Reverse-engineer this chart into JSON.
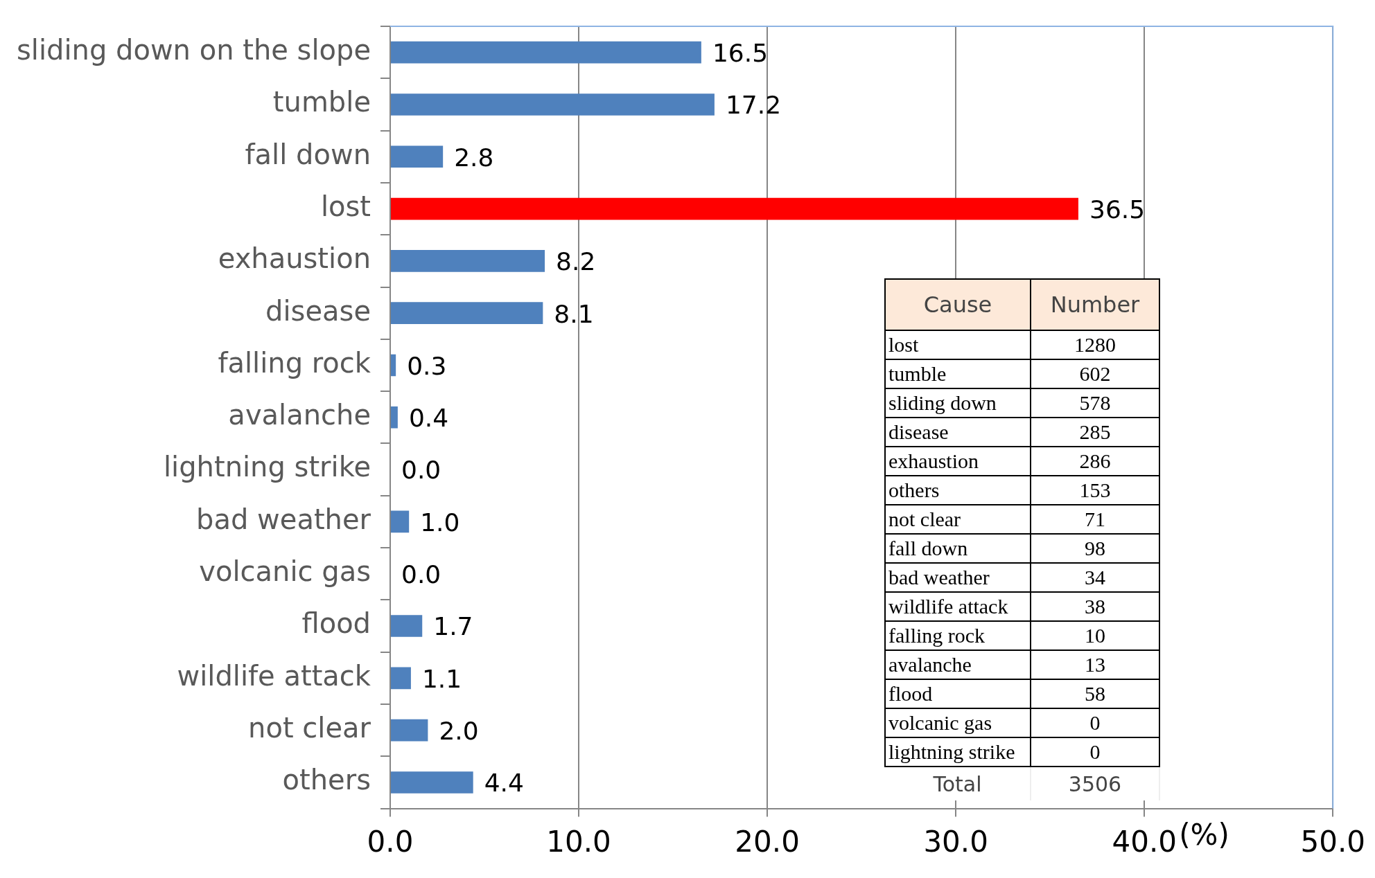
{
  "chart_data": {
    "type": "bar",
    "orientation": "horizontal",
    "categories": [
      "sliding down on the slope",
      "tumble",
      "fall down",
      "lost",
      "exhaustion",
      "disease",
      "falling rock",
      "avalanche",
      "lightning strike",
      "bad weather",
      "volcanic gas",
      "flood",
      "wildlife attack",
      "not clear",
      "others"
    ],
    "values": [
      16.5,
      17.2,
      2.8,
      36.5,
      8.2,
      8.1,
      0.3,
      0.4,
      0.0,
      1.0,
      0.0,
      1.7,
      1.1,
      2.0,
      4.4
    ],
    "colors": [
      "#4f81bd",
      "#4f81bd",
      "#4f81bd",
      "#ff0000",
      "#4f81bd",
      "#4f81bd",
      "#4f81bd",
      "#4f81bd",
      "#4f81bd",
      "#4f81bd",
      "#4f81bd",
      "#4f81bd",
      "#4f81bd",
      "#4f81bd",
      "#4f81bd"
    ],
    "value_labels": [
      "16.5",
      "17.2",
      "2.8",
      "36.5",
      "8.2",
      "8.1",
      "0.3",
      "0.4",
      "0.0",
      "1.0",
      "0.0",
      "1.7",
      "1.1",
      "2.0",
      "4.4"
    ],
    "xlabel": "(%)",
    "xlim": [
      0,
      50
    ],
    "xticks": [
      {
        "value": 0,
        "label": "0.0"
      },
      {
        "value": 10,
        "label": "10.0"
      },
      {
        "value": 20,
        "label": "20.0"
      },
      {
        "value": 30,
        "label": "30.0"
      },
      {
        "value": 40,
        "label": "40.0"
      },
      {
        "value": 50,
        "label": "50.0"
      }
    ],
    "grid": "x",
    "legend": false,
    "annotations": [
      "Cause",
      "Number",
      "lost",
      "1280",
      "tumble",
      "602",
      "sliding down",
      "578",
      "disease",
      "285",
      "exhaustion",
      "286",
      "others",
      "153",
      "not clear",
      "71",
      "fall down",
      "98",
      "bad weather",
      "34",
      "wildlife attack",
      "38",
      "falling rock",
      "10",
      "avalanche",
      "13",
      "flood",
      "58",
      "volcanic gas",
      "0",
      "lightning strike",
      "0",
      "Total",
      "3506"
    ]
  }
}
